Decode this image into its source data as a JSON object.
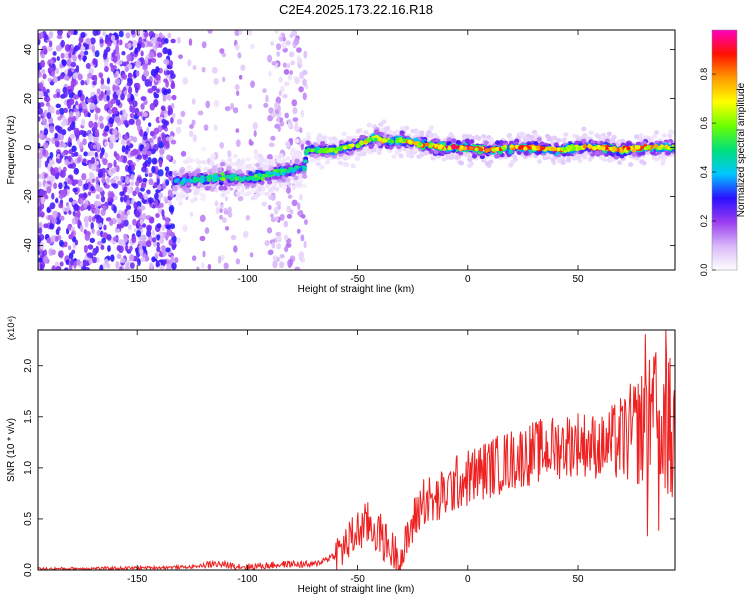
{
  "chart_data": [
    {
      "type": "heatmap",
      "title": "C2E4.2025.173.22.16.R18",
      "xlabel": "Height of straight line (km)",
      "ylabel": "Frequency (Hz)",
      "xlim": [
        -195,
        94
      ],
      "ylim": [
        -50,
        48
      ],
      "xticks": [
        -150,
        -100,
        -50,
        0,
        50
      ],
      "yticks": [
        -40,
        -20,
        0,
        20,
        40
      ],
      "grid": false,
      "colorbar": {
        "label": "Normalized spectral amplitude",
        "range": [
          0,
          0.98
        ],
        "ticks": [
          "0.0",
          "0.2",
          "0.4",
          "0.6",
          "0.8"
        ],
        "colors": [
          "#ffffff",
          "#d8b8f8",
          "#9a3cf0",
          "#2a10ff",
          "#00c8ff",
          "#00e07a",
          "#6cff00",
          "#ffff00",
          "#ff9a00",
          "#ff1000",
          "#ff00c0"
        ]
      },
      "ridge": {
        "x": [
          -133,
          -120,
          -110,
          -100,
          -90,
          -80,
          -74,
          -73,
          -60,
          -50,
          -42,
          -38,
          -30,
          -20,
          -10,
          0,
          10,
          20,
          30,
          40,
          50,
          60,
          70,
          80,
          94
        ],
        "freq": [
          -14,
          -13,
          -12,
          -13,
          -11,
          -9,
          -8,
          -1,
          -1,
          1,
          4,
          3,
          3,
          1,
          0,
          0,
          -1,
          0,
          0,
          -1,
          0,
          0,
          -1,
          0,
          0
        ],
        "peak_amplitude": [
          0.45,
          0.5,
          0.55,
          0.5,
          0.55,
          0.5,
          0.45,
          0.55,
          0.6,
          0.65,
          0.75,
          0.7,
          0.75,
          0.8,
          0.9,
          0.9,
          0.85,
          0.8,
          0.85,
          0.9,
          0.75,
          0.8,
          0.95,
          0.85,
          0.6
        ]
      },
      "noise_region": {
        "x": [
          -195,
          -73
        ],
        "level": 0.22
      }
    },
    {
      "type": "line",
      "xlabel": "Height of straight line (km)",
      "ylabel": "SNR (10 * v/v)",
      "y_multiplier": "(x10⁴)",
      "xlim": [
        -195,
        94
      ],
      "ylim": [
        0,
        2.35
      ],
      "xticks": [
        -150,
        -100,
        -50,
        0,
        50
      ],
      "yticks": [
        "0.0",
        "0.5",
        "1.0",
        "1.5",
        "2.0"
      ],
      "grid": false,
      "series": [
        {
          "color": "#ee2020",
          "x": [
            -195,
            -150,
            -125,
            -115,
            -100,
            -80,
            -70,
            -60,
            -55,
            -50,
            -45,
            -40,
            -35,
            -30,
            -25,
            -20,
            -15,
            -10,
            -5,
            0,
            10,
            20,
            30,
            40,
            50,
            60,
            70,
            80,
            85,
            90,
            94
          ],
          "y": [
            0.01,
            0.02,
            0.03,
            0.06,
            0.03,
            0.06,
            0.05,
            0.15,
            0.25,
            0.38,
            0.45,
            0.35,
            0.2,
            0.12,
            0.45,
            0.7,
            0.65,
            0.75,
            0.85,
            0.9,
            1.0,
            1.08,
            1.15,
            1.2,
            1.25,
            1.2,
            1.28,
            1.4,
            1.5,
            1.45,
            1.2
          ]
        }
      ]
    }
  ]
}
